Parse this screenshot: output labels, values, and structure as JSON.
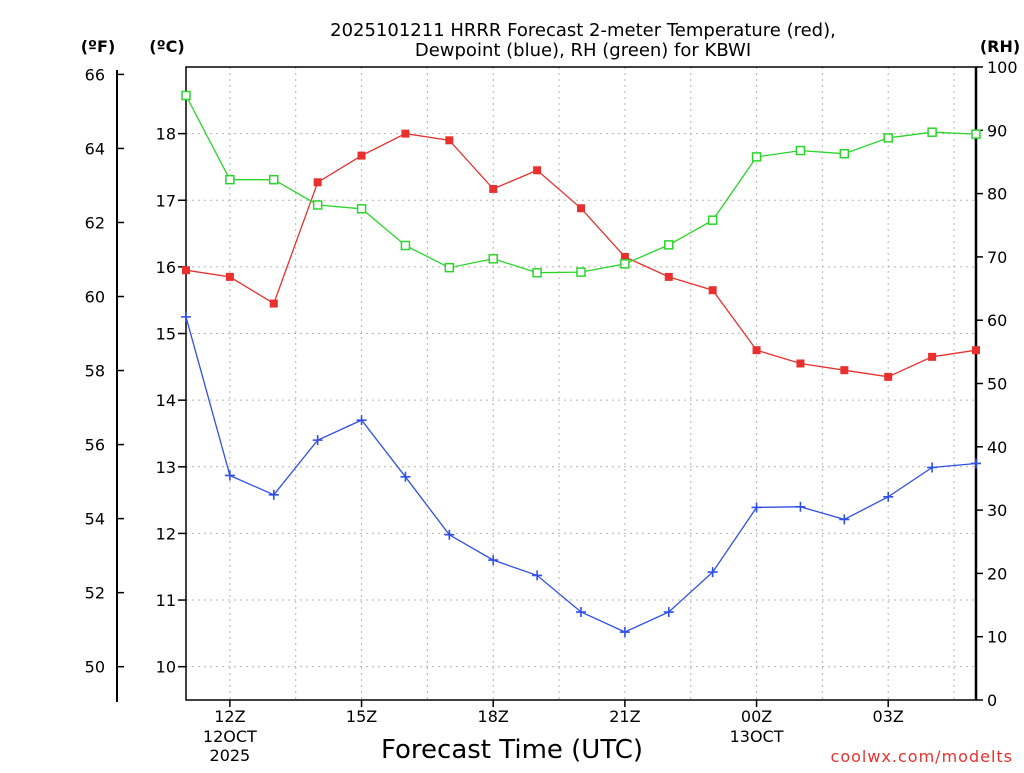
{
  "chart_data": {
    "type": "line",
    "title_line1": "2025101211 HRRR Forecast 2-meter Temperature (red),",
    "title_line2": "Dewpoint (blue), RH (green) for KBWI",
    "xlabel": "Forecast Time (UTC)",
    "credit": "coolwx.com/modelts",
    "axis_units": {
      "fahrenheit": "(ºF)",
      "celsius": "(ºC)",
      "rh": "(RH)"
    },
    "x_hours": [
      11,
      12,
      13,
      14,
      15,
      16,
      17,
      18,
      19,
      20,
      21,
      22,
      23,
      24,
      25,
      26,
      27,
      28,
      29
    ],
    "x_ticks": [
      {
        "hour": 12,
        "label": "12Z",
        "date1": "12OCT",
        "date2": "2025"
      },
      {
        "hour": 15,
        "label": "15Z",
        "date1": "",
        "date2": ""
      },
      {
        "hour": 18,
        "label": "18Z",
        "date1": "",
        "date2": ""
      },
      {
        "hour": 21,
        "label": "21Z",
        "date1": "",
        "date2": ""
      },
      {
        "hour": 24,
        "label": "00Z",
        "date1": "13OCT",
        "date2": ""
      },
      {
        "hour": 27,
        "label": "03Z",
        "date1": "",
        "date2": ""
      }
    ],
    "x_range": [
      11,
      29
    ],
    "celsius_range": [
      9.5,
      19
    ],
    "celsius_ticks": [
      "10",
      "11",
      "12",
      "13",
      "14",
      "15",
      "16",
      "17",
      "18"
    ],
    "fahrenheit_ticks": [
      "50",
      "52",
      "54",
      "56",
      "58",
      "60",
      "62",
      "64",
      "66"
    ],
    "rh_range": [
      0,
      100
    ],
    "rh_ticks": [
      "0",
      "10",
      "20",
      "30",
      "40",
      "50",
      "60",
      "70",
      "80",
      "90",
      "100"
    ],
    "series": [
      {
        "name": "Temperature",
        "color": "#e8312f",
        "marker": "filled-square",
        "values_c": [
          15.95,
          15.85,
          15.45,
          17.27,
          17.67,
          18.0,
          17.9,
          17.17,
          17.45,
          16.88,
          16.15,
          15.85,
          15.65,
          14.75,
          14.55,
          14.45,
          14.35,
          14.65,
          14.75
        ]
      },
      {
        "name": "Dewpoint",
        "color": "#2f4fe8",
        "marker": "plus",
        "values_c": [
          15.25,
          12.87,
          12.58,
          13.4,
          13.7,
          12.85,
          11.98,
          11.6,
          11.37,
          10.82,
          10.52,
          10.82,
          11.42,
          12.39,
          12.4,
          12.21,
          12.55,
          12.99,
          13.05
        ]
      },
      {
        "name": "RH",
        "color": "#2ad52a",
        "marker": "open-square",
        "values_rh": [
          95.5,
          82.2,
          82.2,
          78.2,
          77.6,
          71.8,
          68.3,
          69.7,
          67.5,
          67.6,
          68.9,
          71.9,
          75.8,
          85.8,
          86.8,
          86.3,
          88.8,
          89.7,
          89.4
        ]
      }
    ]
  }
}
